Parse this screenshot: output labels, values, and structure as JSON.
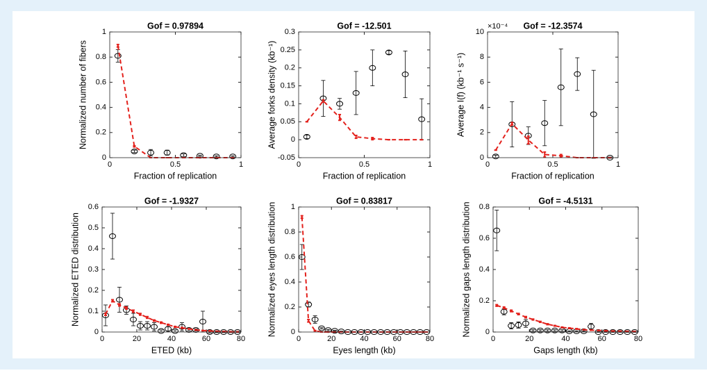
{
  "chart_data": [
    {
      "type": "errorbar",
      "title": "Gof = 0.97894",
      "xlabel": "Fraction of replication",
      "ylabel": "Normalized number of fibers",
      "xlim": [
        0,
        1
      ],
      "xticks": [
        0,
        0.5,
        1
      ],
      "ylim": [
        0,
        1
      ],
      "yticks": [
        0,
        0.2,
        0.4,
        0.6,
        0.8,
        1
      ],
      "x": [
        0.0625,
        0.1875,
        0.3125,
        0.4375,
        0.5625,
        0.6875,
        0.8125,
        0.9375
      ],
      "series": [
        {
          "color": "#000000",
          "marker": "circle",
          "values": [
            0.81,
            0.05,
            0.04,
            0.04,
            0.02,
            0.015,
            0.01,
            0.01
          ],
          "errors": [
            0.05,
            0.01,
            0.025,
            0.02,
            0.01,
            0.005,
            0.005,
            0.005
          ]
        },
        {
          "color": "#e3211c",
          "line": "dashed",
          "values": [
            0.89,
            0.09,
            0,
            0,
            0,
            0,
            0,
            0
          ],
          "errors": [
            0.01,
            0.005,
            0,
            0,
            0,
            0,
            0,
            0
          ]
        }
      ]
    },
    {
      "type": "errorbar",
      "title": "Gof = -12.501",
      "xlabel": "Fraction of replication",
      "ylabel": "Average forks density (kb⁻¹)",
      "xlim": [
        0,
        1
      ],
      "xticks": [
        0,
        0.5,
        1
      ],
      "ylim": [
        -0.05,
        0.3
      ],
      "yticks": [
        -0.05,
        0,
        0.05,
        0.1,
        0.15,
        0.2,
        0.25,
        0.3
      ],
      "x": [
        0.0625,
        0.1875,
        0.3125,
        0.4375,
        0.5625,
        0.6875,
        0.8125,
        0.9375
      ],
      "series": [
        {
          "color": "#000000",
          "marker": "circle",
          "values": [
            0.008,
            0.115,
            0.1,
            0.13,
            0.2,
            0.243,
            0.182,
            0.057
          ],
          "errors": [
            0.005,
            0.05,
            0.015,
            0.06,
            0.05,
            0.005,
            0.065,
            0.057
          ]
        },
        {
          "color": "#e3211c",
          "line": "dashed",
          "values": [
            0.05,
            0.108,
            0.062,
            0.008,
            0.003,
            0,
            0,
            0
          ],
          "errors": [
            0,
            0.003,
            0.008,
            0.004,
            0.003,
            0,
            0,
            0
          ]
        }
      ]
    },
    {
      "type": "errorbar",
      "title": "Gof = -12.3574",
      "xlabel": "Fraction of replication",
      "ylabel": "Average I(f) (kb⁻¹ s⁻¹)",
      "y_exponent": "×10⁻⁴",
      "xlim": [
        0,
        1
      ],
      "xticks": [
        0,
        0.5,
        1
      ],
      "ylim": [
        0,
        10
      ],
      "yticks": [
        0,
        2,
        4,
        6,
        8,
        10
      ],
      "x": [
        0.0625,
        0.1875,
        0.3125,
        0.4375,
        0.5625,
        0.6875,
        0.8125,
        0.9375
      ],
      "series": [
        {
          "color": "#000000",
          "marker": "circle",
          "values": [
            0.1,
            2.65,
            1.75,
            2.75,
            5.6,
            6.65,
            3.45,
            0
          ],
          "errors": [
            0.1,
            1.8,
            0.7,
            1.8,
            3.05,
            1.3,
            3.5,
            0.05
          ]
        },
        {
          "color": "#e3211c",
          "line": "dashed",
          "values": [
            0.6,
            2.7,
            1.4,
            0.25,
            0.15,
            0,
            0,
            0
          ],
          "errors": [
            0,
            0.1,
            0.3,
            0.2,
            0.1,
            0,
            0,
            0
          ]
        }
      ]
    },
    {
      "type": "errorbar",
      "title": "Gof = -1.9327",
      "xlabel": "ETED (kb)",
      "ylabel": "Normalized ETED distribution",
      "xlim": [
        0,
        80
      ],
      "xticks": [
        0,
        20,
        40,
        60,
        80
      ],
      "ylim": [
        0,
        0.6
      ],
      "yticks": [
        0,
        0.1,
        0.2,
        0.3,
        0.4,
        0.5,
        0.6
      ],
      "x": [
        2,
        6,
        10,
        14,
        18,
        22,
        26,
        30,
        34,
        38,
        42,
        46,
        50,
        54,
        58,
        62,
        66,
        70,
        74,
        78
      ],
      "series": [
        {
          "color": "#000000",
          "marker": "circle",
          "values": [
            0.08,
            0.46,
            0.155,
            0.105,
            0.06,
            0.03,
            0.03,
            0.025,
            0.005,
            0.015,
            0.005,
            0.025,
            0.01,
            0.01,
            0.05,
            0,
            0,
            0,
            0,
            0
          ],
          "errors": [
            0.05,
            0.11,
            0.06,
            0.02,
            0.03,
            0.02,
            0.02,
            0.02,
            0.005,
            0.01,
            0.005,
            0.02,
            0.005,
            0.005,
            0.05,
            0.005,
            0.003,
            0.003,
            0.003,
            0.003
          ]
        },
        {
          "color": "#e3211c",
          "line": "dashed",
          "values": [
            0.085,
            0.15,
            0.13,
            0.115,
            0.1,
            0.085,
            0.07,
            0.055,
            0.045,
            0.035,
            0.025,
            0.02,
            0.015,
            0.01,
            0.007,
            0.005,
            0.003,
            0.002,
            0.001,
            0.001
          ],
          "errors": [
            0.005,
            0.005,
            0.005,
            0.005,
            0.005,
            0.004,
            0.004,
            0.003,
            0.003,
            0.002,
            0.002,
            0.002,
            0.001,
            0.001,
            0.001,
            0.001,
            0.001,
            0.001,
            0.001,
            0.001
          ]
        }
      ]
    },
    {
      "type": "errorbar",
      "title": "Gof = 0.83817",
      "xlabel": "Eyes length (kb)",
      "ylabel": "Normalized eyes length distribution",
      "xlim": [
        0,
        80
      ],
      "xticks": [
        0,
        20,
        40,
        60,
        80
      ],
      "ylim": [
        0,
        1
      ],
      "yticks": [
        0,
        0.2,
        0.4,
        0.6,
        0.8,
        1
      ],
      "x": [
        2,
        6,
        10,
        14,
        18,
        22,
        26,
        30,
        34,
        38,
        42,
        46,
        50,
        54,
        58,
        62,
        66,
        70,
        74,
        78
      ],
      "series": [
        {
          "color": "#000000",
          "marker": "circle",
          "values": [
            0.6,
            0.22,
            0.1,
            0.03,
            0.015,
            0.01,
            0.005,
            0,
            0,
            0,
            0,
            0,
            0,
            0,
            0,
            0,
            0,
            0,
            0,
            0
          ],
          "errors": [
            0.1,
            0.02,
            0.03,
            0.005,
            0.005,
            0.003,
            0.002,
            0,
            0,
            0,
            0,
            0,
            0,
            0,
            0,
            0,
            0,
            0,
            0,
            0
          ]
        },
        {
          "color": "#e3211c",
          "line": "dashed",
          "values": [
            0.92,
            0.09,
            0.01,
            0,
            0,
            0,
            0,
            0,
            0,
            0,
            0,
            0,
            0,
            0,
            0,
            0,
            0,
            0,
            0,
            0
          ],
          "errors": [
            0.01,
            0.01,
            0.002,
            0,
            0,
            0,
            0,
            0,
            0,
            0,
            0,
            0,
            0,
            0,
            0,
            0,
            0,
            0,
            0,
            0
          ]
        }
      ]
    },
    {
      "type": "errorbar",
      "title": "Gof = -4.5131",
      "xlabel": "Gaps length (kb)",
      "ylabel": "Normalized gaps length distribution",
      "xlim": [
        0,
        80
      ],
      "xticks": [
        0,
        20,
        40,
        60,
        80
      ],
      "ylim": [
        0,
        0.8
      ],
      "yticks": [
        0,
        0.2,
        0.4,
        0.6,
        0.8
      ],
      "x": [
        2,
        6,
        10,
        14,
        18,
        22,
        26,
        30,
        34,
        38,
        42,
        46,
        50,
        54,
        58,
        62,
        66,
        70,
        74,
        78
      ],
      "series": [
        {
          "color": "#000000",
          "marker": "circle",
          "values": [
            0.65,
            0.13,
            0.04,
            0.045,
            0.055,
            0.01,
            0.01,
            0.01,
            0.01,
            0.01,
            0.005,
            0.005,
            0.005,
            0.035,
            0,
            0,
            0,
            0,
            0,
            0
          ],
          "errors": [
            0.13,
            0.02,
            0.02,
            0.02,
            0.025,
            0.005,
            0.005,
            0.005,
            0.005,
            0.005,
            0.003,
            0.003,
            0.003,
            0.02,
            0.002,
            0.002,
            0.002,
            0.002,
            0.002,
            0.002
          ]
        },
        {
          "color": "#e3211c",
          "line": "dashed",
          "values": [
            0.17,
            0.155,
            0.135,
            0.115,
            0.095,
            0.08,
            0.065,
            0.05,
            0.04,
            0.03,
            0.025,
            0.02,
            0.015,
            0.012,
            0.01,
            0.008,
            0.006,
            0.005,
            0.004,
            0.003
          ],
          "errors": [
            0.005,
            0.005,
            0.005,
            0.004,
            0.004,
            0.003,
            0.003,
            0.003,
            0.002,
            0.002,
            0.002,
            0.002,
            0.001,
            0.001,
            0.001,
            0.001,
            0.001,
            0.001,
            0.001,
            0.001
          ]
        }
      ]
    }
  ]
}
